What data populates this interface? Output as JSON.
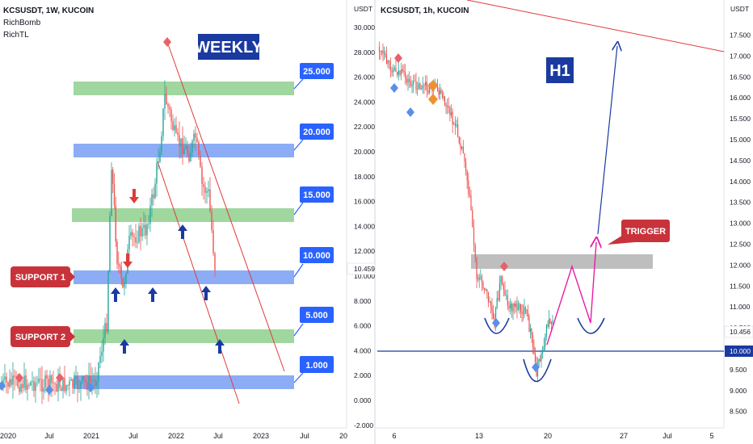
{
  "chart_data": [
    {
      "type": "candlestick",
      "symbol_header": "KCSUSDT, 1W, KUCOIN",
      "indicators": [
        "RichBomb",
        "RichTL"
      ],
      "title": "WEEKLY",
      "currency": "USDT",
      "y_ticks": [
        "30.000",
        "28.000",
        "26.000",
        "24.000",
        "22.000",
        "20.000",
        "18.000",
        "16.000",
        "14.000",
        "12.000",
        "10.000",
        "8.000",
        "6.000",
        "4.000",
        "2.000",
        "0.000",
        "-2.000"
      ],
      "x_ticks": [
        "2020",
        "Jul",
        "2021",
        "Jul",
        "2022",
        "Jul",
        "2023",
        "Jul",
        "20"
      ],
      "last_price": "10.459",
      "zones": [
        {
          "label": "25.000",
          "color": "#7fc97f"
        },
        {
          "label": "20.000",
          "color": "#6f98f2"
        },
        {
          "label": "15.000",
          "color": "#7fc97f"
        },
        {
          "label": "10.000",
          "color": "#6f98f2"
        },
        {
          "label": "5.000",
          "color": "#7fc97f"
        },
        {
          "label": "1.000",
          "color": "#6f98f2"
        }
      ],
      "annotations": [
        "SUPPORT 1",
        "SUPPORT 2"
      ]
    },
    {
      "type": "candlestick",
      "symbol_header": "KCSUSDT, 1h, KUCOIN",
      "title": "H1",
      "currency": "USDT",
      "y_ticks": [
        "17.500",
        "17.000",
        "16.500",
        "16.000",
        "15.500",
        "15.000",
        "14.500",
        "14.000",
        "13.500",
        "13.000",
        "12.500",
        "12.000",
        "11.500",
        "11.000",
        "10.500",
        "10.000",
        "9.500",
        "9.000",
        "8.500"
      ],
      "x_ticks": [
        "6",
        "13",
        "20",
        "27",
        "Jul",
        "5"
      ],
      "last_price": "10.456",
      "level_line": "10.000",
      "annotations": [
        "TRIGGER"
      ]
    }
  ],
  "colors": {
    "support_red": "#c8333b",
    "level_blue": "#1a3aa0",
    "label_blue": "#2962ff",
    "projection_magenta": "#e81ca6",
    "trend_red": "#e03a3a",
    "zone_gray": "#a8a8a8"
  }
}
